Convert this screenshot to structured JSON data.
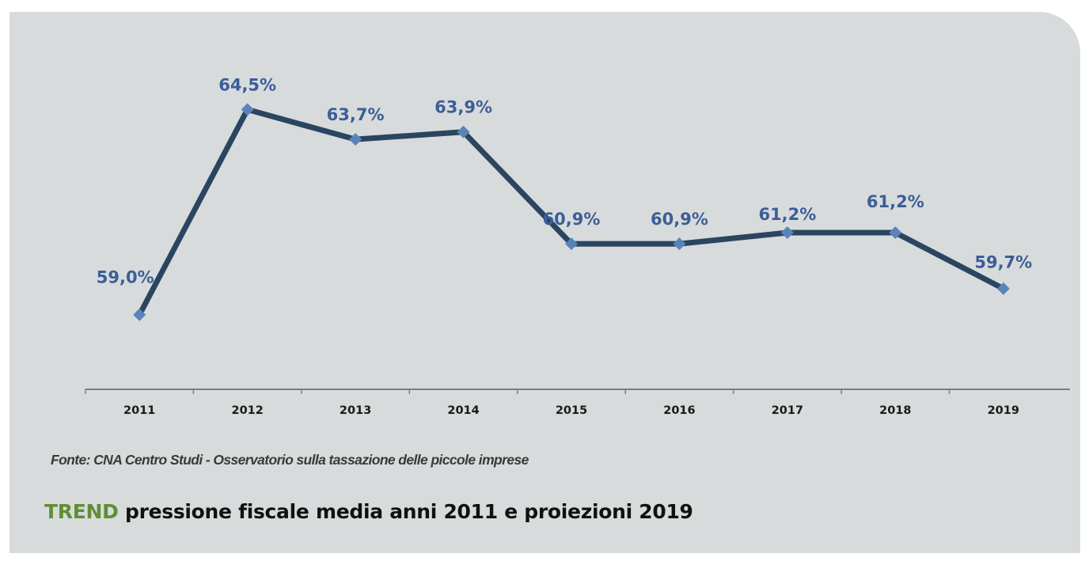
{
  "chart_data": {
    "type": "line",
    "title": "TREND pressione fiscale media anni 2011 e proiezioni 2019",
    "title_highlight": "TREND",
    "title_rest": "pressione fiscale media anni 2011 e proiezioni 2019",
    "source": "Fonte: CNA Centro Studi - Osservatorio sulla tassazione delle piccole imprese",
    "xlabel": "",
    "ylabel": "",
    "categories": [
      "2011",
      "2012",
      "2013",
      "2014",
      "2015",
      "2016",
      "2017",
      "2018",
      "2019"
    ],
    "series": [
      {
        "name": "Pressione fiscale media",
        "values": [
          59.0,
          64.5,
          63.7,
          63.9,
          60.9,
          60.9,
          61.2,
          61.2,
          59.7
        ],
        "labels": [
          "59,0%",
          "64,5%",
          "63,7%",
          "63,9%",
          "60,9%",
          "60,9%",
          "61,2%",
          "61,2%",
          "59,7%"
        ]
      }
    ],
    "ylim": [
      57.0,
      66.8
    ],
    "grid": false,
    "y_axis_visible": false,
    "legend": "none",
    "colors": {
      "line": "#2b4560",
      "marker": "#5a84b8",
      "data_label": "#3b5e98",
      "title_accent": "#5f8f33",
      "background": "#d8dbdc"
    }
  }
}
